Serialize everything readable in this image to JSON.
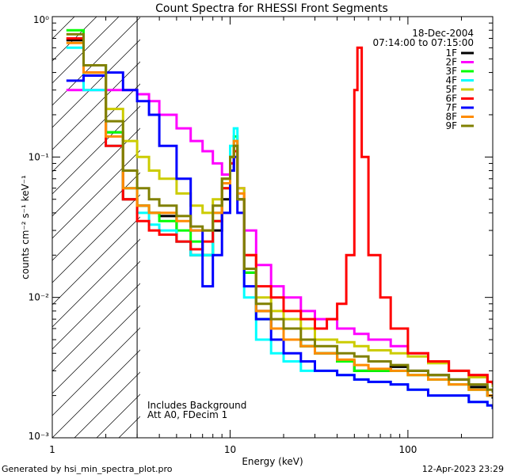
{
  "chart_data": {
    "type": "line",
    "title": "Count Spectra for RHESSI Front Segments",
    "xlabel": "Energy (keV)",
    "ylabel": "counts cm⁻² s⁻¹ keV⁻¹",
    "xscale": "log",
    "yscale": "log",
    "xlim": [
      1,
      300
    ],
    "ylim": [
      0.001,
      1
    ],
    "x_tick_labels": [
      "1",
      "10",
      "100"
    ],
    "y_tick_labels": [
      "10⁰",
      "10⁻¹",
      "10⁻²",
      "10⁻³"
    ],
    "date": "18-Dec-2004",
    "time_range": "07:14:00 to 07:15:00",
    "legend_position": "top-right",
    "annotation_lines": [
      "Includes Background",
      "Att A0, FDecim 1"
    ],
    "attenuated_region_max_kev": 3,
    "series": [
      {
        "name": "1F",
        "color": "#000000",
        "x": [
          1.2,
          1.5,
          2,
          2.5,
          3,
          3.5,
          4,
          5,
          6,
          7,
          8,
          9,
          10,
          10.5,
          11,
          12,
          14,
          17,
          20,
          25,
          30,
          40,
          50,
          60,
          80,
          100,
          130,
          170,
          220,
          280,
          300
        ],
        "y": [
          0.68,
          0.45,
          0.15,
          0.05,
          0.045,
          0.04,
          0.038,
          0.025,
          0.02,
          0.02,
          0.03,
          0.05,
          0.08,
          0.12,
          0.05,
          0.015,
          0.008,
          0.006,
          0.005,
          0.0045,
          0.004,
          0.0035,
          0.003,
          0.003,
          0.0032,
          0.003,
          0.0028,
          0.0026,
          0.0023,
          0.002,
          0.0019
        ]
      },
      {
        "name": "2F",
        "color": "#ff00ff",
        "x": [
          1.2,
          1.5,
          2,
          2.5,
          3,
          3.5,
          4,
          5,
          6,
          7,
          8,
          9,
          10,
          10.5,
          11,
          12,
          14,
          17,
          20,
          25,
          30,
          40,
          50,
          60,
          80,
          100,
          130,
          170,
          220,
          280,
          300
        ],
        "y": [
          0.3,
          0.3,
          0.3,
          0.3,
          0.28,
          0.25,
          0.2,
          0.16,
          0.13,
          0.11,
          0.09,
          0.075,
          0.09,
          0.12,
          0.06,
          0.03,
          0.017,
          0.012,
          0.01,
          0.008,
          0.007,
          0.006,
          0.0055,
          0.005,
          0.0045,
          0.004,
          0.0035,
          0.003,
          0.0028,
          0.0025,
          0.0024
        ]
      },
      {
        "name": "3F",
        "color": "#00ff00",
        "x": [
          1.2,
          1.5,
          2,
          2.5,
          3,
          3.5,
          4,
          5,
          6,
          7,
          8,
          9,
          10,
          10.5,
          11,
          12,
          14,
          17,
          20,
          25,
          30,
          40,
          50,
          60,
          80,
          100,
          130,
          170,
          220,
          280,
          300
        ],
        "y": [
          0.8,
          0.45,
          0.15,
          0.06,
          0.045,
          0.04,
          0.035,
          0.03,
          0.025,
          0.02,
          0.035,
          0.06,
          0.1,
          0.14,
          0.05,
          0.015,
          0.007,
          0.006,
          0.005,
          0.0045,
          0.004,
          0.0035,
          0.003,
          0.003,
          0.003,
          0.0028,
          0.0026,
          0.0024,
          0.0022,
          0.002,
          0.002
        ]
      },
      {
        "name": "4F",
        "color": "#00ffff",
        "x": [
          1.2,
          1.5,
          2,
          2.5,
          3,
          3.5,
          4,
          5,
          6,
          7,
          8,
          9,
          10,
          10.5,
          11,
          12,
          14,
          17,
          20,
          25,
          30,
          40,
          50,
          60,
          80,
          100,
          130,
          170,
          220,
          280,
          300
        ],
        "y": [
          0.6,
          0.3,
          0.12,
          0.06,
          0.04,
          0.033,
          0.03,
          0.025,
          0.02,
          0.02,
          0.04,
          0.07,
          0.12,
          0.16,
          0.05,
          0.01,
          0.005,
          0.004,
          0.0035,
          0.003,
          0.003,
          0.0028,
          0.0026,
          0.0025,
          0.0024,
          0.0022,
          0.002,
          0.002,
          0.0018,
          0.0017,
          0.0016
        ]
      },
      {
        "name": "5F",
        "color": "#cccc00",
        "x": [
          1.2,
          1.5,
          2,
          2.5,
          3,
          3.5,
          4,
          5,
          6,
          7,
          8,
          9,
          10,
          10.5,
          11,
          12,
          14,
          17,
          20,
          25,
          30,
          40,
          50,
          60,
          80,
          100,
          130,
          170,
          220,
          280,
          300
        ],
        "y": [
          0.7,
          0.4,
          0.22,
          0.13,
          0.1,
          0.08,
          0.07,
          0.055,
          0.045,
          0.04,
          0.05,
          0.07,
          0.09,
          0.11,
          0.06,
          0.02,
          0.01,
          0.008,
          0.007,
          0.006,
          0.005,
          0.0048,
          0.0045,
          0.0042,
          0.004,
          0.0038,
          0.0034,
          0.003,
          0.0027,
          0.0025,
          0.0023
        ]
      },
      {
        "name": "6F",
        "color": "#ff0000",
        "x": [
          1.2,
          1.5,
          2,
          2.5,
          3,
          3.5,
          4,
          5,
          6,
          7,
          8,
          9,
          10,
          10.5,
          11,
          12,
          14,
          17,
          20,
          25,
          30,
          35,
          40,
          45,
          50,
          52,
          55,
          60,
          70,
          80,
          100,
          130,
          170,
          220,
          280,
          300
        ],
        "y": [
          0.7,
          0.4,
          0.12,
          0.05,
          0.035,
          0.03,
          0.028,
          0.025,
          0.022,
          0.025,
          0.035,
          0.06,
          0.09,
          0.11,
          0.05,
          0.02,
          0.012,
          0.01,
          0.008,
          0.007,
          0.006,
          0.007,
          0.009,
          0.02,
          0.3,
          0.6,
          0.1,
          0.02,
          0.01,
          0.006,
          0.004,
          0.0035,
          0.003,
          0.0028,
          0.0025,
          0.0024
        ]
      },
      {
        "name": "7F",
        "color": "#0000ff",
        "x": [
          1.2,
          1.5,
          2,
          2.5,
          3,
          3.5,
          4,
          5,
          6,
          7,
          8,
          9,
          10,
          10.5,
          11,
          12,
          14,
          17,
          20,
          25,
          30,
          40,
          50,
          60,
          80,
          100,
          130,
          170,
          220,
          280,
          300
        ],
        "y": [
          0.35,
          0.38,
          0.4,
          0.3,
          0.25,
          0.2,
          0.12,
          0.07,
          0.03,
          0.012,
          0.02,
          0.04,
          0.08,
          0.1,
          0.04,
          0.012,
          0.007,
          0.005,
          0.004,
          0.0035,
          0.003,
          0.0028,
          0.0026,
          0.0025,
          0.0024,
          0.0022,
          0.002,
          0.002,
          0.0018,
          0.0017,
          0.0016
        ]
      },
      {
        "name": "8F",
        "color": "#ff8c00",
        "x": [
          1.2,
          1.5,
          2,
          2.5,
          3,
          3.5,
          4,
          5,
          6,
          7,
          8,
          9,
          10,
          10.5,
          11,
          12,
          14,
          17,
          20,
          25,
          30,
          40,
          50,
          60,
          80,
          100,
          130,
          170,
          220,
          280,
          300
        ],
        "y": [
          0.65,
          0.4,
          0.14,
          0.06,
          0.045,
          0.04,
          0.04,
          0.035,
          0.03,
          0.03,
          0.04,
          0.065,
          0.1,
          0.13,
          0.055,
          0.016,
          0.008,
          0.006,
          0.005,
          0.0045,
          0.004,
          0.0036,
          0.0033,
          0.0031,
          0.003,
          0.0028,
          0.0026,
          0.0024,
          0.0022,
          0.002,
          0.002
        ]
      },
      {
        "name": "9F",
        "color": "#808000",
        "x": [
          1.2,
          1.5,
          2,
          2.5,
          3,
          3.5,
          4,
          5,
          6,
          7,
          8,
          9,
          10,
          10.5,
          11,
          12,
          14,
          17,
          20,
          25,
          30,
          40,
          50,
          60,
          80,
          100,
          130,
          170,
          220,
          280,
          300
        ],
        "y": [
          0.75,
          0.45,
          0.18,
          0.08,
          0.06,
          0.05,
          0.045,
          0.038,
          0.032,
          0.03,
          0.045,
          0.07,
          0.1,
          0.12,
          0.05,
          0.016,
          0.009,
          0.007,
          0.006,
          0.005,
          0.0045,
          0.004,
          0.0038,
          0.0035,
          0.0033,
          0.003,
          0.0028,
          0.0026,
          0.0024,
          0.0022,
          0.0021
        ]
      }
    ]
  },
  "footer": {
    "generated_by": "Generated by hsi_min_spectra_plot.pro",
    "timestamp": "12-Apr-2023 23:29"
  }
}
